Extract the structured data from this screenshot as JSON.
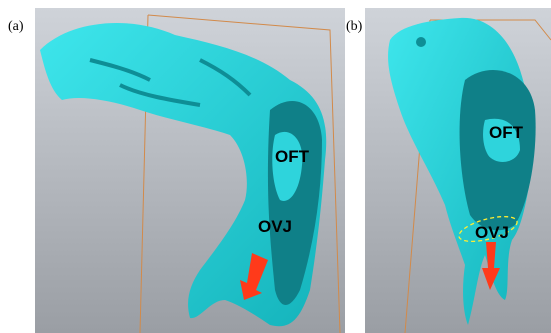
{
  "panels": [
    {
      "label": "(a)",
      "annotations": [
        "OFT",
        "OVJ"
      ]
    },
    {
      "label": "(b)",
      "annotations": [
        "OFT",
        "OVJ"
      ]
    }
  ]
}
